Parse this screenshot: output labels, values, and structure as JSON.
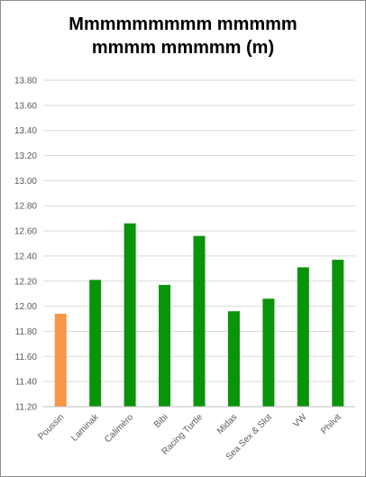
{
  "chart_data": {
    "type": "bar",
    "title_lines": [
      "Mmmmmmmmm mmmmm",
      "mmmm mmmmm (m)"
    ],
    "categories": [
      "Poussin",
      "Laminak",
      "Calimèro",
      "Bibi",
      "Racing Turtle",
      "Midas",
      "Sea Sex & Slot",
      "VW",
      "Philvit"
    ],
    "values": [
      11.94,
      12.21,
      12.66,
      12.17,
      12.56,
      11.96,
      12.06,
      12.31,
      12.37
    ],
    "ylim": [
      11.2,
      13.8
    ],
    "yticks": [
      "11.20",
      "11.40",
      "11.60",
      "11.80",
      "12.00",
      "12.20",
      "12.40",
      "12.60",
      "12.80",
      "13.00",
      "13.20",
      "13.40",
      "13.60",
      "13.80"
    ],
    "grid": true,
    "legend": "none",
    "colors": {
      "highlight": "#f79646",
      "default": "#0a940a",
      "grid": "#d9d9d9",
      "axis": "#bfbfbf"
    },
    "highlight_index": 0
  }
}
